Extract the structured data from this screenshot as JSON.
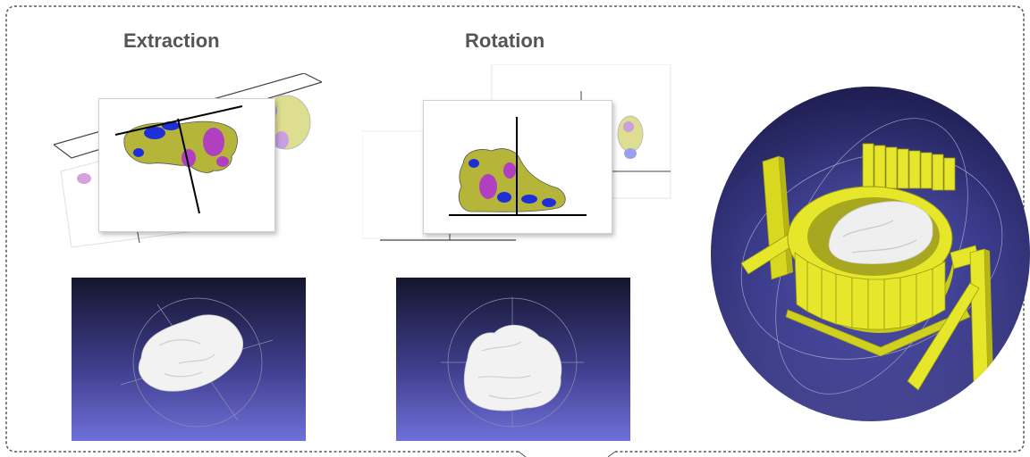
{
  "figure": {
    "panels": [
      {
        "id": "extraction",
        "title": "Extraction"
      },
      {
        "id": "rotation",
        "title": "Rotation"
      }
    ],
    "colors": {
      "frame_border": "#555555",
      "title_text": "#555555",
      "slice_fill": "#b5b53a",
      "slice_blue": "#1f2fd8",
      "slice_magenta": "#b040c0",
      "render_top": "#15152e",
      "render_bottom": "#6f6fd9",
      "mesh": "#f2f2f2",
      "printed_mold": "#e6e62a"
    },
    "icons": [
      "slice-extraction-icon",
      "slice-rotation-icon",
      "mesh-render-icon",
      "mold-render-icon"
    ]
  }
}
